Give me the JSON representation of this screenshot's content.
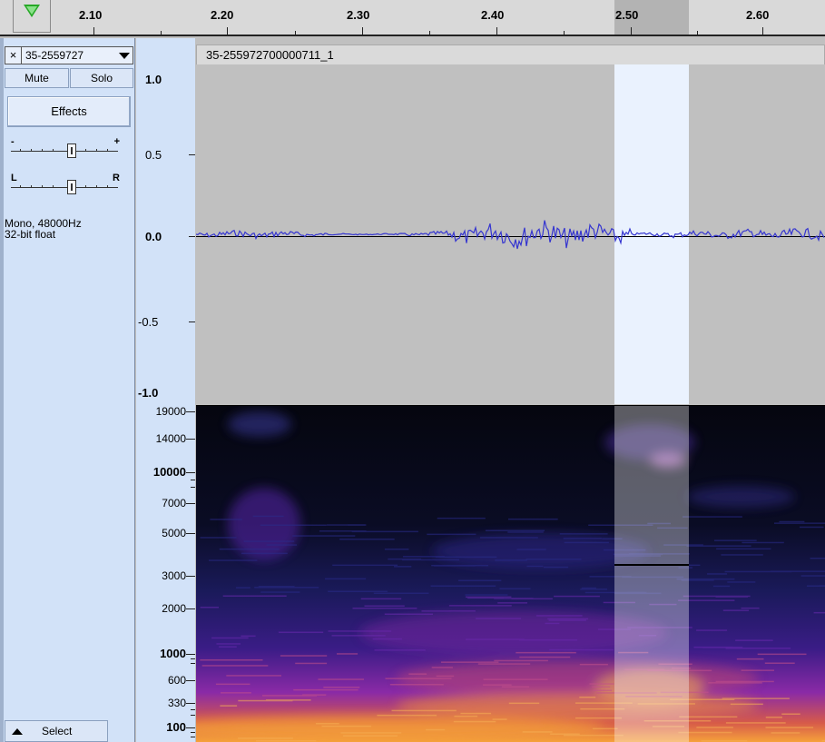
{
  "ruler": {
    "ticks": [
      "2.10",
      "2.20",
      "2.30",
      "2.40",
      "2.50",
      "2.60"
    ]
  },
  "track": {
    "name": "35-2559727",
    "close_glyph": "×",
    "mute_label": "Mute",
    "solo_label": "Solo",
    "effects_label": "Effects",
    "gain_minus": "-",
    "gain_plus": "+",
    "pan_left": "L",
    "pan_right": "R",
    "format_line1": "Mono, 48000Hz",
    "format_line2": "32-bit float",
    "select_label": "Select"
  },
  "clip": {
    "title": "35-255972700000711_1"
  },
  "waveform_scale": [
    "1.0",
    "0.5",
    "0.0",
    "-0.5",
    "-1.0"
  ],
  "spectrogram_scale": [
    "19000",
    "14000",
    "10000",
    "7000",
    "5000",
    "3000",
    "2000",
    "1000",
    "600",
    "330",
    "100"
  ],
  "colors": {
    "waveform": "#3535d0",
    "selection": "#eaf2fe",
    "panel": "#d2e2f8",
    "play_green": "#26a826"
  },
  "icons": {
    "play": "play-triangle-icon",
    "close": "close-icon",
    "menu": "dropdown-arrow-icon",
    "collapse": "collapse-up-icon"
  }
}
